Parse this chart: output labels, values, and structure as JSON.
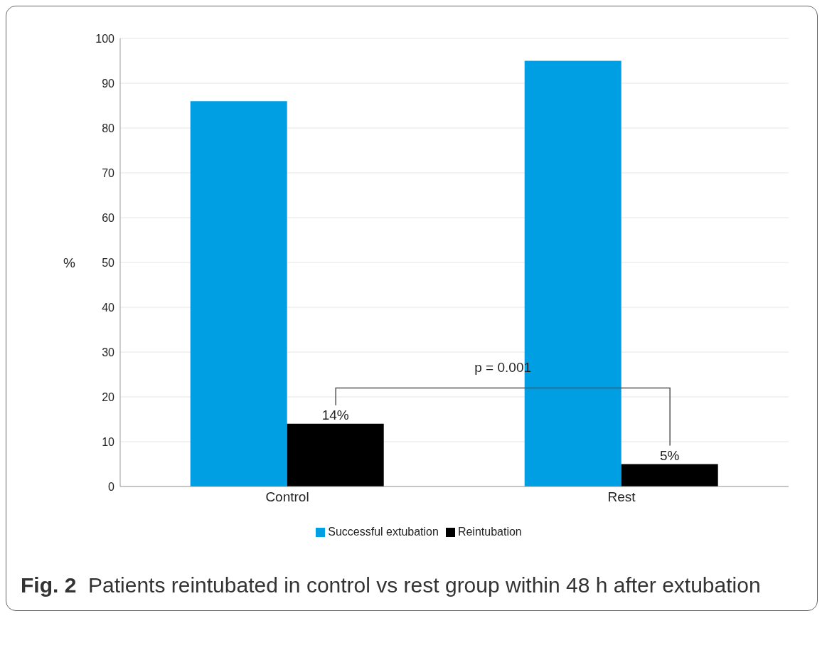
{
  "chart_data": {
    "type": "bar",
    "categories": [
      "Control",
      "Rest"
    ],
    "series": [
      {
        "name": "Successful extubation",
        "color": "#009fe3",
        "values": [
          86,
          95
        ]
      },
      {
        "name": "Reintubation",
        "color": "#000000",
        "values": [
          14,
          5
        ],
        "value_labels": [
          "14%",
          "5%"
        ]
      }
    ],
    "ylabel": "%",
    "ylim": [
      0,
      100
    ],
    "yticks": [
      0,
      10,
      20,
      30,
      40,
      50,
      60,
      70,
      80,
      90,
      100
    ],
    "grid": "y",
    "legend": "bottom",
    "annotations": [
      "p = 0.001",
      "Fig. 2  Patients reintubated in control vs rest group within 48 h after extubation"
    ]
  }
}
